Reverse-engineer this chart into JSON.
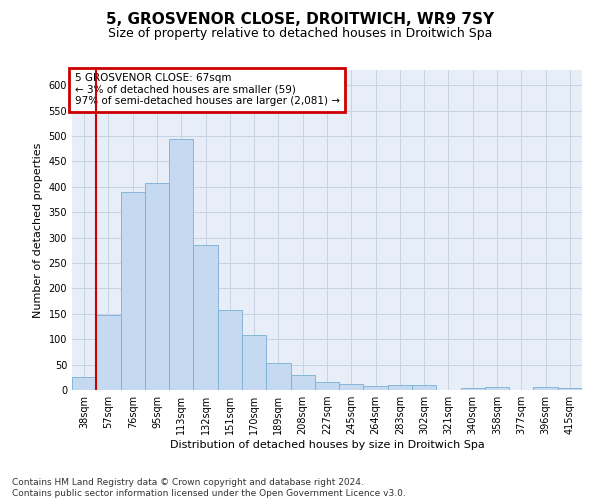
{
  "title": "5, GROSVENOR CLOSE, DROITWICH, WR9 7SY",
  "subtitle": "Size of property relative to detached houses in Droitwich Spa",
  "xlabel": "Distribution of detached houses by size in Droitwich Spa",
  "ylabel": "Number of detached properties",
  "footnote": "Contains HM Land Registry data © Crown copyright and database right 2024.\nContains public sector information licensed under the Open Government Licence v3.0.",
  "categories": [
    "38sqm",
    "57sqm",
    "76sqm",
    "95sqm",
    "113sqm",
    "132sqm",
    "151sqm",
    "170sqm",
    "189sqm",
    "208sqm",
    "227sqm",
    "245sqm",
    "264sqm",
    "283sqm",
    "302sqm",
    "321sqm",
    "340sqm",
    "358sqm",
    "377sqm",
    "396sqm",
    "415sqm"
  ],
  "values": [
    25,
    148,
    390,
    408,
    495,
    285,
    158,
    108,
    53,
    30,
    15,
    12,
    7,
    10,
    10,
    0,
    3,
    5,
    0,
    5,
    3
  ],
  "bar_color": "#c5d9f0",
  "bar_edge_color": "#7bafd4",
  "grid_color": "#c8d4e4",
  "background_color": "#e8eef8",
  "vline_x_index": 1,
  "vline_color": "#cc0000",
  "annotation_line1": "5 GROSVENOR CLOSE: 67sqm",
  "annotation_line2": "← 3% of detached houses are smaller (59)",
  "annotation_line3": "97% of semi-detached houses are larger (2,081) →",
  "annotation_box_facecolor": "#ffffff",
  "annotation_box_edgecolor": "#cc0000",
  "ylim_max": 630,
  "yticks": [
    0,
    50,
    100,
    150,
    200,
    250,
    300,
    350,
    400,
    450,
    500,
    550,
    600
  ],
  "title_fontsize": 11,
  "subtitle_fontsize": 9,
  "tick_fontsize": 7,
  "ylabel_fontsize": 8,
  "xlabel_fontsize": 8,
  "footnote_fontsize": 6.5
}
